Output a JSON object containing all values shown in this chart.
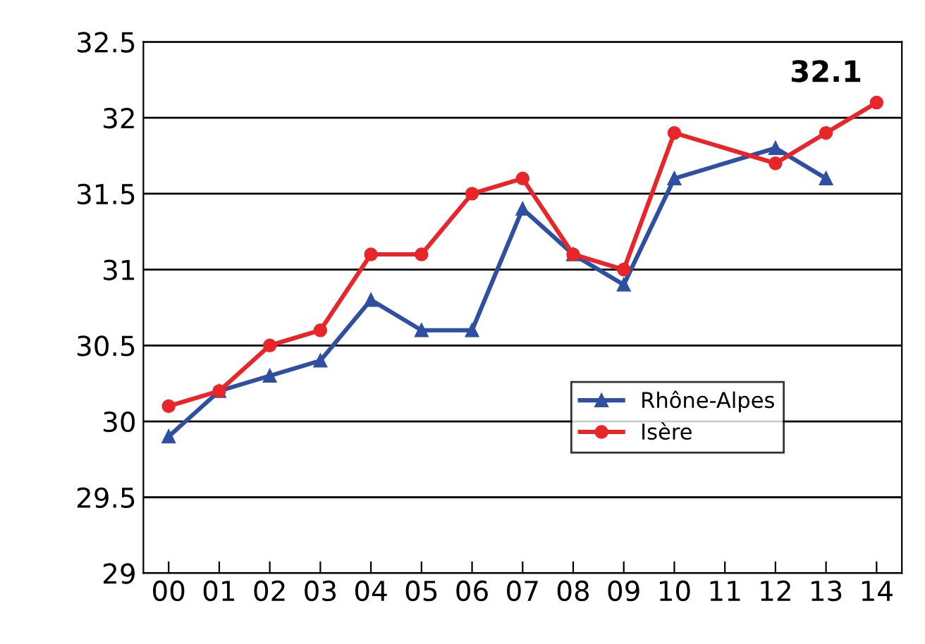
{
  "chart_data": {
    "type": "line",
    "categories": [
      "00",
      "01",
      "02",
      "03",
      "04",
      "05",
      "06",
      "07",
      "08",
      "09",
      "10",
      "11",
      "12",
      "13",
      "14"
    ],
    "series": [
      {
        "name": "Rhône-Alpes",
        "color": "#2f4fa2",
        "marker": "triangle",
        "values": [
          29.9,
          30.2,
          30.3,
          30.4,
          30.8,
          30.6,
          30.6,
          31.4,
          31.1,
          30.9,
          31.6,
          null,
          31.8,
          31.6,
          null
        ]
      },
      {
        "name": "Isère",
        "color": "#e8262a",
        "marker": "circle",
        "values": [
          30.1,
          30.2,
          30.5,
          30.6,
          31.1,
          31.1,
          31.5,
          31.6,
          31.1,
          31.0,
          31.9,
          null,
          31.7,
          31.9,
          32.1
        ]
      }
    ],
    "ylim": [
      29,
      32.5
    ],
    "yticks": [
      29,
      29.5,
      30,
      30.5,
      31,
      31.5,
      32,
      32.5
    ],
    "grid": "y",
    "legend": "bottom right",
    "annotations": [
      "32.1"
    ]
  }
}
